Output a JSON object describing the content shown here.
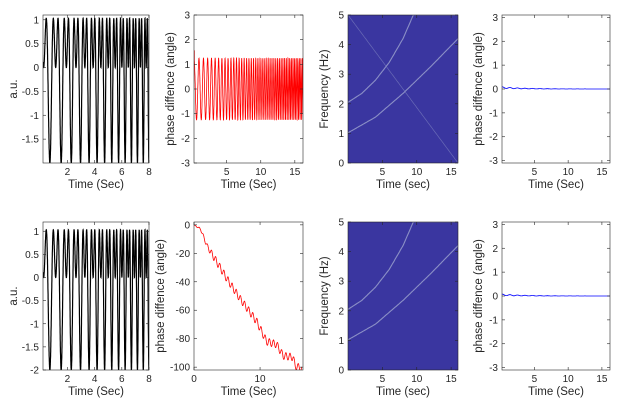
{
  "colors": {
    "black": "#000000",
    "red": "#ff0000",
    "blue": "#0000ff",
    "spec_bg": "#3a36a0",
    "spec_line": "#8f95c8"
  },
  "chart_data": [
    {
      "type": "line",
      "id": "p11",
      "xlabel": "Time (Sec)",
      "ylabel": "a.u.",
      "xlim": [
        0.2,
        8
      ],
      "ylim": [
        -2,
        1.1
      ],
      "xticks": [
        2,
        4,
        6,
        8
      ],
      "xtick_labels": [
        "2",
        "4",
        "6",
        "8"
      ],
      "yticks": [
        -1.5,
        -1,
        -0.5,
        0,
        0.5,
        1
      ],
      "ytick_labels": [
        "-1.5",
        "-1",
        "-0.5",
        "0",
        "0.5",
        "1"
      ],
      "series": [
        {
          "color": "#000000",
          "kind": "two_tone_sum",
          "f1_hz": 1,
          "f2_hz": 2,
          "chirp_rate": 0.18,
          "sampling": [
            0.2,
            8,
            0.004
          ]
        }
      ]
    },
    {
      "type": "line",
      "id": "p12",
      "xlabel": "Time (Sec)",
      "ylabel": "phase diffence (angle)",
      "xlim": [
        0.2,
        16.2
      ],
      "ylim": [
        -3,
        3
      ],
      "xticks": [
        5,
        10,
        15
      ],
      "xtick_labels": [
        "5",
        "10",
        "15"
      ],
      "yticks": [
        -3,
        -2,
        -1,
        0,
        1,
        2,
        3
      ],
      "ytick_labels": [
        "-3",
        "-2",
        "-1",
        "0",
        "1",
        "2",
        "3"
      ],
      "series": [
        {
          "color": "#ff0000",
          "kind": "oscillation",
          "amplitude": 1.25,
          "start_value": 1.55,
          "cycles_per_sec_start": 1.3,
          "cycles_per_sec_growth": 0.2,
          "sampling": [
            0.2,
            16.2,
            0.01
          ]
        }
      ]
    },
    {
      "type": "heatmap",
      "id": "p13",
      "xlabel": "Time (sec)",
      "ylabel": "Frequency (Hz)",
      "xlim": [
        0,
        16
      ],
      "ylim": [
        0,
        5
      ],
      "xticks": [
        5,
        10,
        15
      ],
      "xtick_labels": [
        "5",
        "10",
        "15"
      ],
      "yticks": [
        0,
        1,
        2,
        3,
        4,
        5
      ],
      "ytick_labels": [
        "0",
        "1",
        "2",
        "3",
        "4",
        "5"
      ],
      "ridges": [
        {
          "points": [
            [
              0,
              1.02
            ],
            [
              4,
              1.55
            ],
            [
              8,
              2.35
            ],
            [
              12,
              3.25
            ],
            [
              16,
              4.2
            ]
          ]
        },
        {
          "points": [
            [
              0,
              2.05
            ],
            [
              2,
              2.35
            ],
            [
              4,
              2.8
            ],
            [
              6,
              3.4
            ],
            [
              8,
              4.2
            ],
            [
              9.5,
              5.0
            ]
          ]
        },
        {
          "points": [
            [
              0,
              5.0
            ],
            [
              8,
              2.5
            ],
            [
              16,
              0.0
            ]
          ],
          "faint": true
        }
      ]
    },
    {
      "type": "line",
      "id": "p14",
      "xlabel": "Time (Sec)",
      "ylabel": "phase diffence (angle)",
      "xlim": [
        0.2,
        16.2
      ],
      "ylim": [
        -3.1,
        3.1
      ],
      "xticks": [
        5,
        10,
        15
      ],
      "xtick_labels": [
        "5",
        "10",
        "15"
      ],
      "yticks": [
        -3,
        -2,
        -1,
        0,
        1,
        2,
        3
      ],
      "ytick_labels": [
        "-3",
        "-2",
        "-1",
        "0",
        "1",
        "2",
        "3"
      ],
      "series": [
        {
          "color": "#0000ff",
          "kind": "damped_ripple",
          "start_value": 0.06,
          "ripple": 0.03,
          "sampling": [
            0.2,
            16.2,
            0.02
          ]
        }
      ]
    },
    {
      "type": "line",
      "id": "p21",
      "xlabel": "Time (Sec)",
      "ylabel": "a.u.",
      "xlim": [
        0.2,
        8
      ],
      "ylim": [
        -2,
        1.2
      ],
      "xticks": [
        2,
        4,
        6,
        8
      ],
      "xtick_labels": [
        "2",
        "4",
        "6",
        "8"
      ],
      "yticks": [
        -2,
        -1.5,
        -1,
        -0.5,
        0,
        0.5,
        1
      ],
      "ytick_labels": [
        "-2",
        "-1.5",
        "-1",
        "-0.5",
        "0",
        "0.5",
        "1"
      ],
      "series": [
        {
          "color": "#000000",
          "kind": "two_tone_sum",
          "f1_hz": 1,
          "f2_hz": 2,
          "chirp_rate": 0.18,
          "sampling": [
            0.2,
            8,
            0.004
          ]
        }
      ]
    },
    {
      "type": "line",
      "id": "p22",
      "xlabel": "Time (Sec)",
      "ylabel": "phase diffence (angle)",
      "xlim": [
        0,
        16.5
      ],
      "ylim": [
        -102,
        2
      ],
      "xticks": [
        0,
        10
      ],
      "xtick_labels": [
        "0",
        "10"
      ],
      "yticks": [
        -100,
        -80,
        -60,
        -40,
        -20,
        0
      ],
      "ytick_labels": [
        "-100",
        "-80",
        "-60",
        "-40",
        "-20",
        "0"
      ],
      "series": [
        {
          "color": "#ff0000",
          "kind": "stepped_trend",
          "trend": [
            [
              0,
              0
            ],
            [
              1,
              -3
            ],
            [
              2,
              -15
            ],
            [
              5,
              -38
            ],
            [
              7,
              -52
            ],
            [
              9.5,
              -68
            ],
            [
              11,
              -82
            ],
            [
              12.5,
              -84
            ],
            [
              13.5,
              -92
            ],
            [
              15,
              -93
            ],
            [
              15.3,
              -99
            ],
            [
              16.3,
              -101
            ]
          ],
          "ripple": 2.5,
          "sampling": [
            0,
            16.3,
            0.02
          ]
        }
      ]
    },
    {
      "type": "heatmap",
      "id": "p23",
      "xlabel": "Time (sec)",
      "ylabel": "Frequency (Hz)",
      "xlim": [
        0,
        16
      ],
      "ylim": [
        0,
        5
      ],
      "xticks": [
        5,
        10,
        15
      ],
      "xtick_labels": [
        "5",
        "10",
        "15"
      ],
      "yticks": [
        0,
        1,
        2,
        3,
        4,
        5
      ],
      "ytick_labels": [
        "0",
        "1",
        "2",
        "3",
        "4",
        "5"
      ],
      "ridges": [
        {
          "points": [
            [
              0,
              1.02
            ],
            [
              4,
              1.55
            ],
            [
              8,
              2.35
            ],
            [
              12,
              3.25
            ],
            [
              16,
              4.2
            ]
          ]
        },
        {
          "points": [
            [
              0,
              2.05
            ],
            [
              2,
              2.35
            ],
            [
              4,
              2.8
            ],
            [
              6,
              3.4
            ],
            [
              8,
              4.2
            ],
            [
              9.5,
              5.0
            ]
          ]
        }
      ]
    },
    {
      "type": "line",
      "id": "p24",
      "xlabel": "Time (Sec)",
      "ylabel": "phase diffence (angle)",
      "xlim": [
        0.2,
        16.2
      ],
      "ylim": [
        -3.1,
        3.1
      ],
      "xticks": [
        5,
        10,
        15
      ],
      "xtick_labels": [
        "5",
        "10",
        "15"
      ],
      "yticks": [
        -3,
        -2,
        -1,
        0,
        1,
        2,
        3
      ],
      "ytick_labels": [
        "-3",
        "-2",
        "-1",
        "0",
        "1",
        "2",
        "3"
      ],
      "series": [
        {
          "color": "#0000ff",
          "kind": "damped_ripple",
          "start_value": 0.05,
          "ripple": 0.03,
          "sampling": [
            0.2,
            16.2,
            0.02
          ]
        }
      ]
    }
  ]
}
